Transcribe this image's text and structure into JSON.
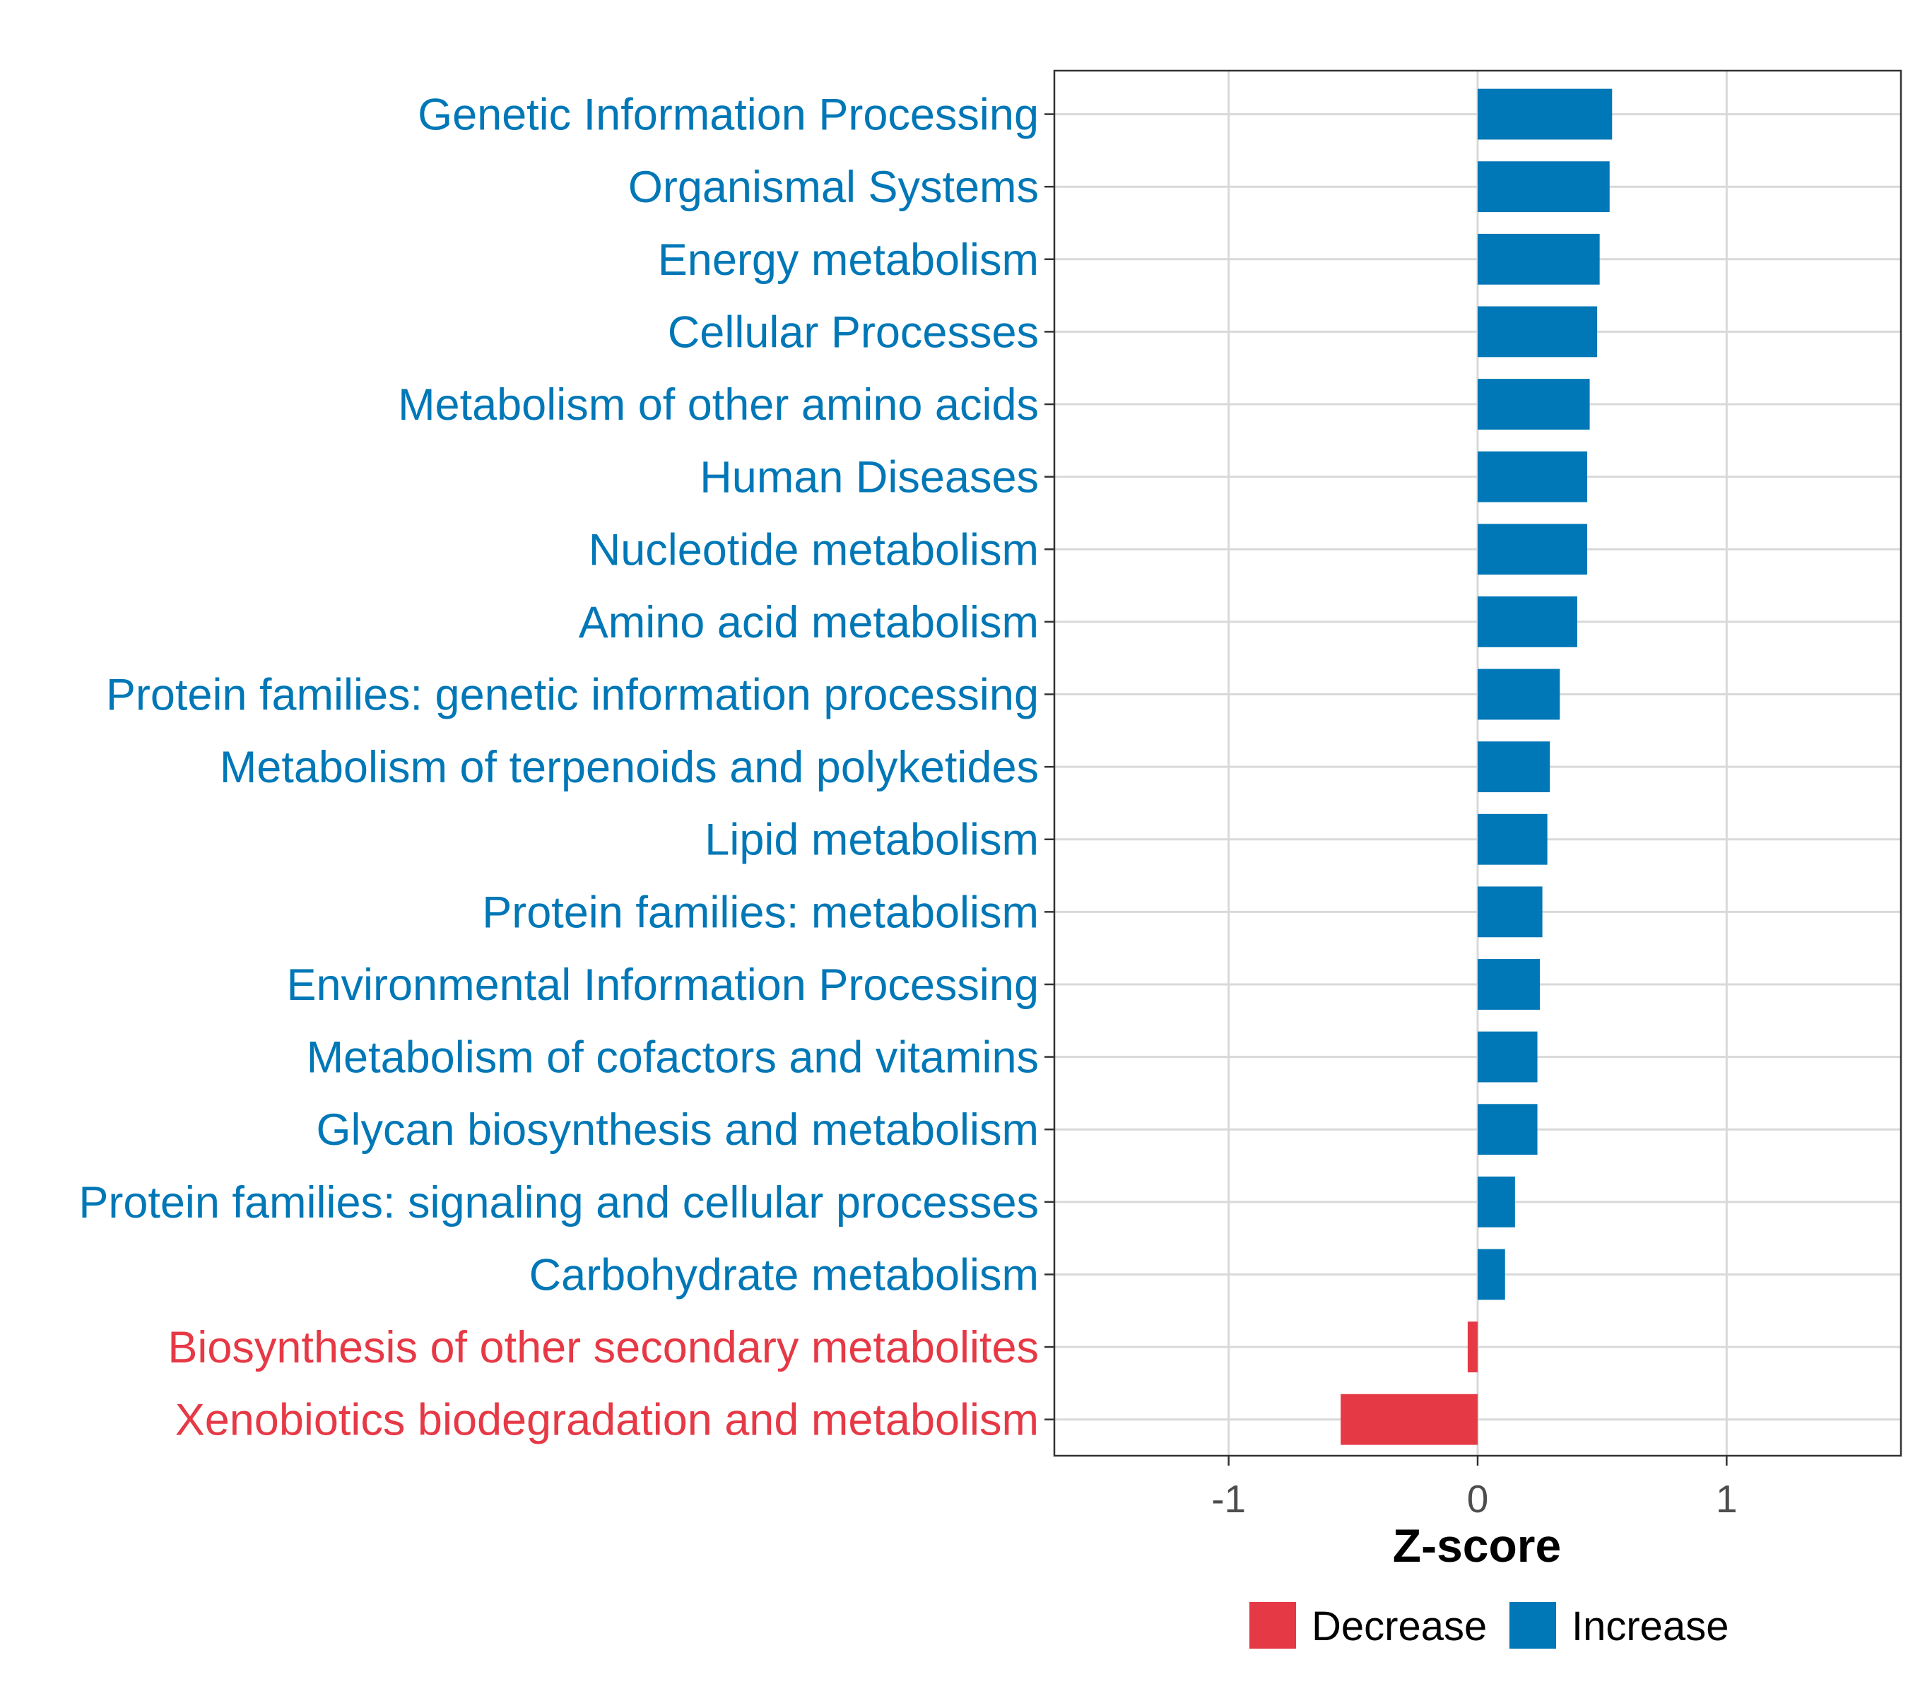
{
  "chart_data": {
    "type": "bar",
    "orientation": "horizontal",
    "title": "",
    "xlabel": "Z-score",
    "ylabel": "",
    "xlim": [
      -1.7,
      1.7
    ],
    "x_ticks": [
      -1,
      0,
      1
    ],
    "x_tick_labels": [
      "-1",
      "0",
      "1"
    ],
    "grid": true,
    "legend_position": "bottom",
    "categories": [
      "Genetic Information Processing",
      "Organismal Systems",
      "Energy metabolism",
      "Cellular Processes",
      "Metabolism of other amino acids",
      "Human Diseases",
      "Nucleotide metabolism",
      "Amino acid metabolism",
      "Protein families: genetic information processing",
      "Metabolism of terpenoids and polyketides",
      "Lipid metabolism",
      "Protein families: metabolism",
      "Environmental Information Processing",
      "Metabolism of cofactors and vitamins",
      "Glycan biosynthesis and metabolism",
      "Protein families: signaling and cellular processes",
      "Carbohydrate metabolism",
      "Biosynthesis of other secondary metabolites",
      "Xenobiotics biodegradation and metabolism"
    ],
    "values": [
      0.54,
      0.53,
      0.49,
      0.48,
      0.45,
      0.44,
      0.44,
      0.4,
      0.33,
      0.29,
      0.28,
      0.26,
      0.25,
      0.24,
      0.24,
      0.15,
      0.11,
      -0.04,
      -0.55
    ],
    "groups": [
      "Increase",
      "Increase",
      "Increase",
      "Increase",
      "Increase",
      "Increase",
      "Increase",
      "Increase",
      "Increase",
      "Increase",
      "Increase",
      "Increase",
      "Increase",
      "Increase",
      "Increase",
      "Increase",
      "Increase",
      "Decrease",
      "Decrease"
    ],
    "legend": [
      {
        "name": "Decrease",
        "color": "#e63946"
      },
      {
        "name": "Increase",
        "color": "#0077b6"
      }
    ]
  }
}
